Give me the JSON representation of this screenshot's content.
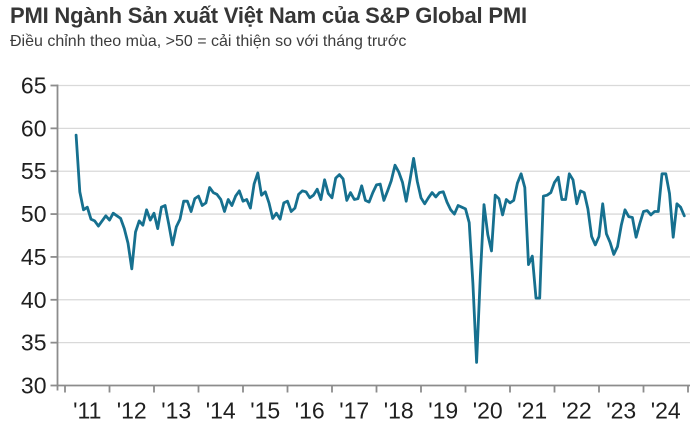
{
  "header": {
    "title": "PMI Ngành Sản xuất Việt Nam của S&P Global PMI",
    "subtitle": "Điều chỉnh theo mùa, >50 = cải thiện so với tháng trước"
  },
  "chart_data": {
    "type": "line",
    "title": "PMI Ngành Sản xuất Việt Nam của S&P Global PMI",
    "subtitle": "Điều chỉnh theo mùa, >50 = cải thiện so với tháng trước",
    "xlabel": "",
    "ylabel": "",
    "ylim": [
      30,
      65
    ],
    "y_ticks": [
      30,
      35,
      40,
      45,
      50,
      55,
      60,
      65
    ],
    "x_tick_labels": [
      "'11",
      "'12",
      "'13",
      "'14",
      "'15",
      "'16",
      "'17",
      "'18",
      "'19",
      "'20",
      "'21",
      "'22",
      "'23",
      "'24"
    ],
    "x_range": "Jan 2011 - Dec 2024",
    "frequency": "monthly",
    "grid": "horizontal",
    "legend_position": "none",
    "colors": {
      "line": "#16708f",
      "grid": "#d9d9d9",
      "axis": "#8c8c8c",
      "tick_text": "#1f1f1f"
    },
    "series": [
      {
        "name": "PMI Sản xuất Việt Nam",
        "start_year": 2011,
        "start_month": 4,
        "points_by_year": [
          {
            "year": 2011,
            "values": [
              59.2,
              52.6,
              50.5,
              50.8,
              49.4,
              49.2,
              48.6,
              49.2,
              49.8
            ]
          },
          {
            "year": 2012,
            "values": [
              49.3,
              50.1,
              49.8,
              49.5,
              48.3,
              46.6,
              43.6,
              47.9,
              49.2,
              48.7,
              50.5,
              49.3
            ]
          },
          {
            "year": 2013,
            "values": [
              50.1,
              48.3,
              50.8,
              51.0,
              48.8,
              46.4,
              48.5,
              49.4,
              51.5,
              51.5,
              50.3,
              51.8
            ]
          },
          {
            "year": 2014,
            "values": [
              52.1,
              51.0,
              51.3,
              53.1,
              52.5,
              52.3,
              51.7,
              50.3,
              51.7,
              51.0,
              52.1,
              52.7
            ]
          },
          {
            "year": 2015,
            "values": [
              51.5,
              51.7,
              50.7,
              53.5,
              54.8,
              52.2,
              52.6,
              51.3,
              49.5,
              50.1,
              49.4,
              51.3
            ]
          },
          {
            "year": 2016,
            "values": [
              51.5,
              50.3,
              50.7,
              52.3,
              52.7,
              52.6,
              51.9,
              52.2,
              52.9,
              51.7,
              54.0,
              52.4
            ]
          },
          {
            "year": 2017,
            "values": [
              51.9,
              54.2,
              54.6,
              54.1,
              51.6,
              52.5,
              51.7,
              51.8,
              53.3,
              51.6,
              51.4,
              52.5
            ]
          },
          {
            "year": 2018,
            "values": [
              53.4,
              53.5,
              51.6,
              52.7,
              53.9,
              55.7,
              54.9,
              53.7,
              51.5,
              53.9,
              56.5,
              53.8
            ]
          },
          {
            "year": 2019,
            "values": [
              51.9,
              51.2,
              51.9,
              52.5,
              52.0,
              52.5,
              52.6,
              51.4,
              50.5,
              50.0,
              51.0,
              50.8
            ]
          },
          {
            "year": 2020,
            "values": [
              50.6,
              49.0,
              41.9,
              32.7,
              42.7,
              51.1,
              47.6,
              45.7,
              52.2,
              51.8,
              49.9,
              51.7
            ]
          },
          {
            "year": 2021,
            "values": [
              51.3,
              51.6,
              53.6,
              54.7,
              53.1,
              44.1,
              45.1,
              40.2,
              40.2,
              52.1,
              52.2,
              52.5
            ]
          },
          {
            "year": 2022,
            "values": [
              53.7,
              54.3,
              51.7,
              51.7,
              54.7,
              54.0,
              51.2,
              52.7,
              52.5,
              50.6,
              47.4,
              46.4
            ]
          },
          {
            "year": 2023,
            "values": [
              47.4,
              51.2,
              47.7,
              46.7,
              45.3,
              46.2,
              48.7,
              50.5,
              49.7,
              49.6,
              47.3,
              48.9
            ]
          },
          {
            "year": 2024,
            "values": [
              50.3,
              50.4,
              49.9,
              50.3,
              50.3,
              54.7,
              54.7,
              52.4,
              47.3,
              51.2,
              50.8,
              49.8
            ]
          }
        ]
      }
    ]
  }
}
